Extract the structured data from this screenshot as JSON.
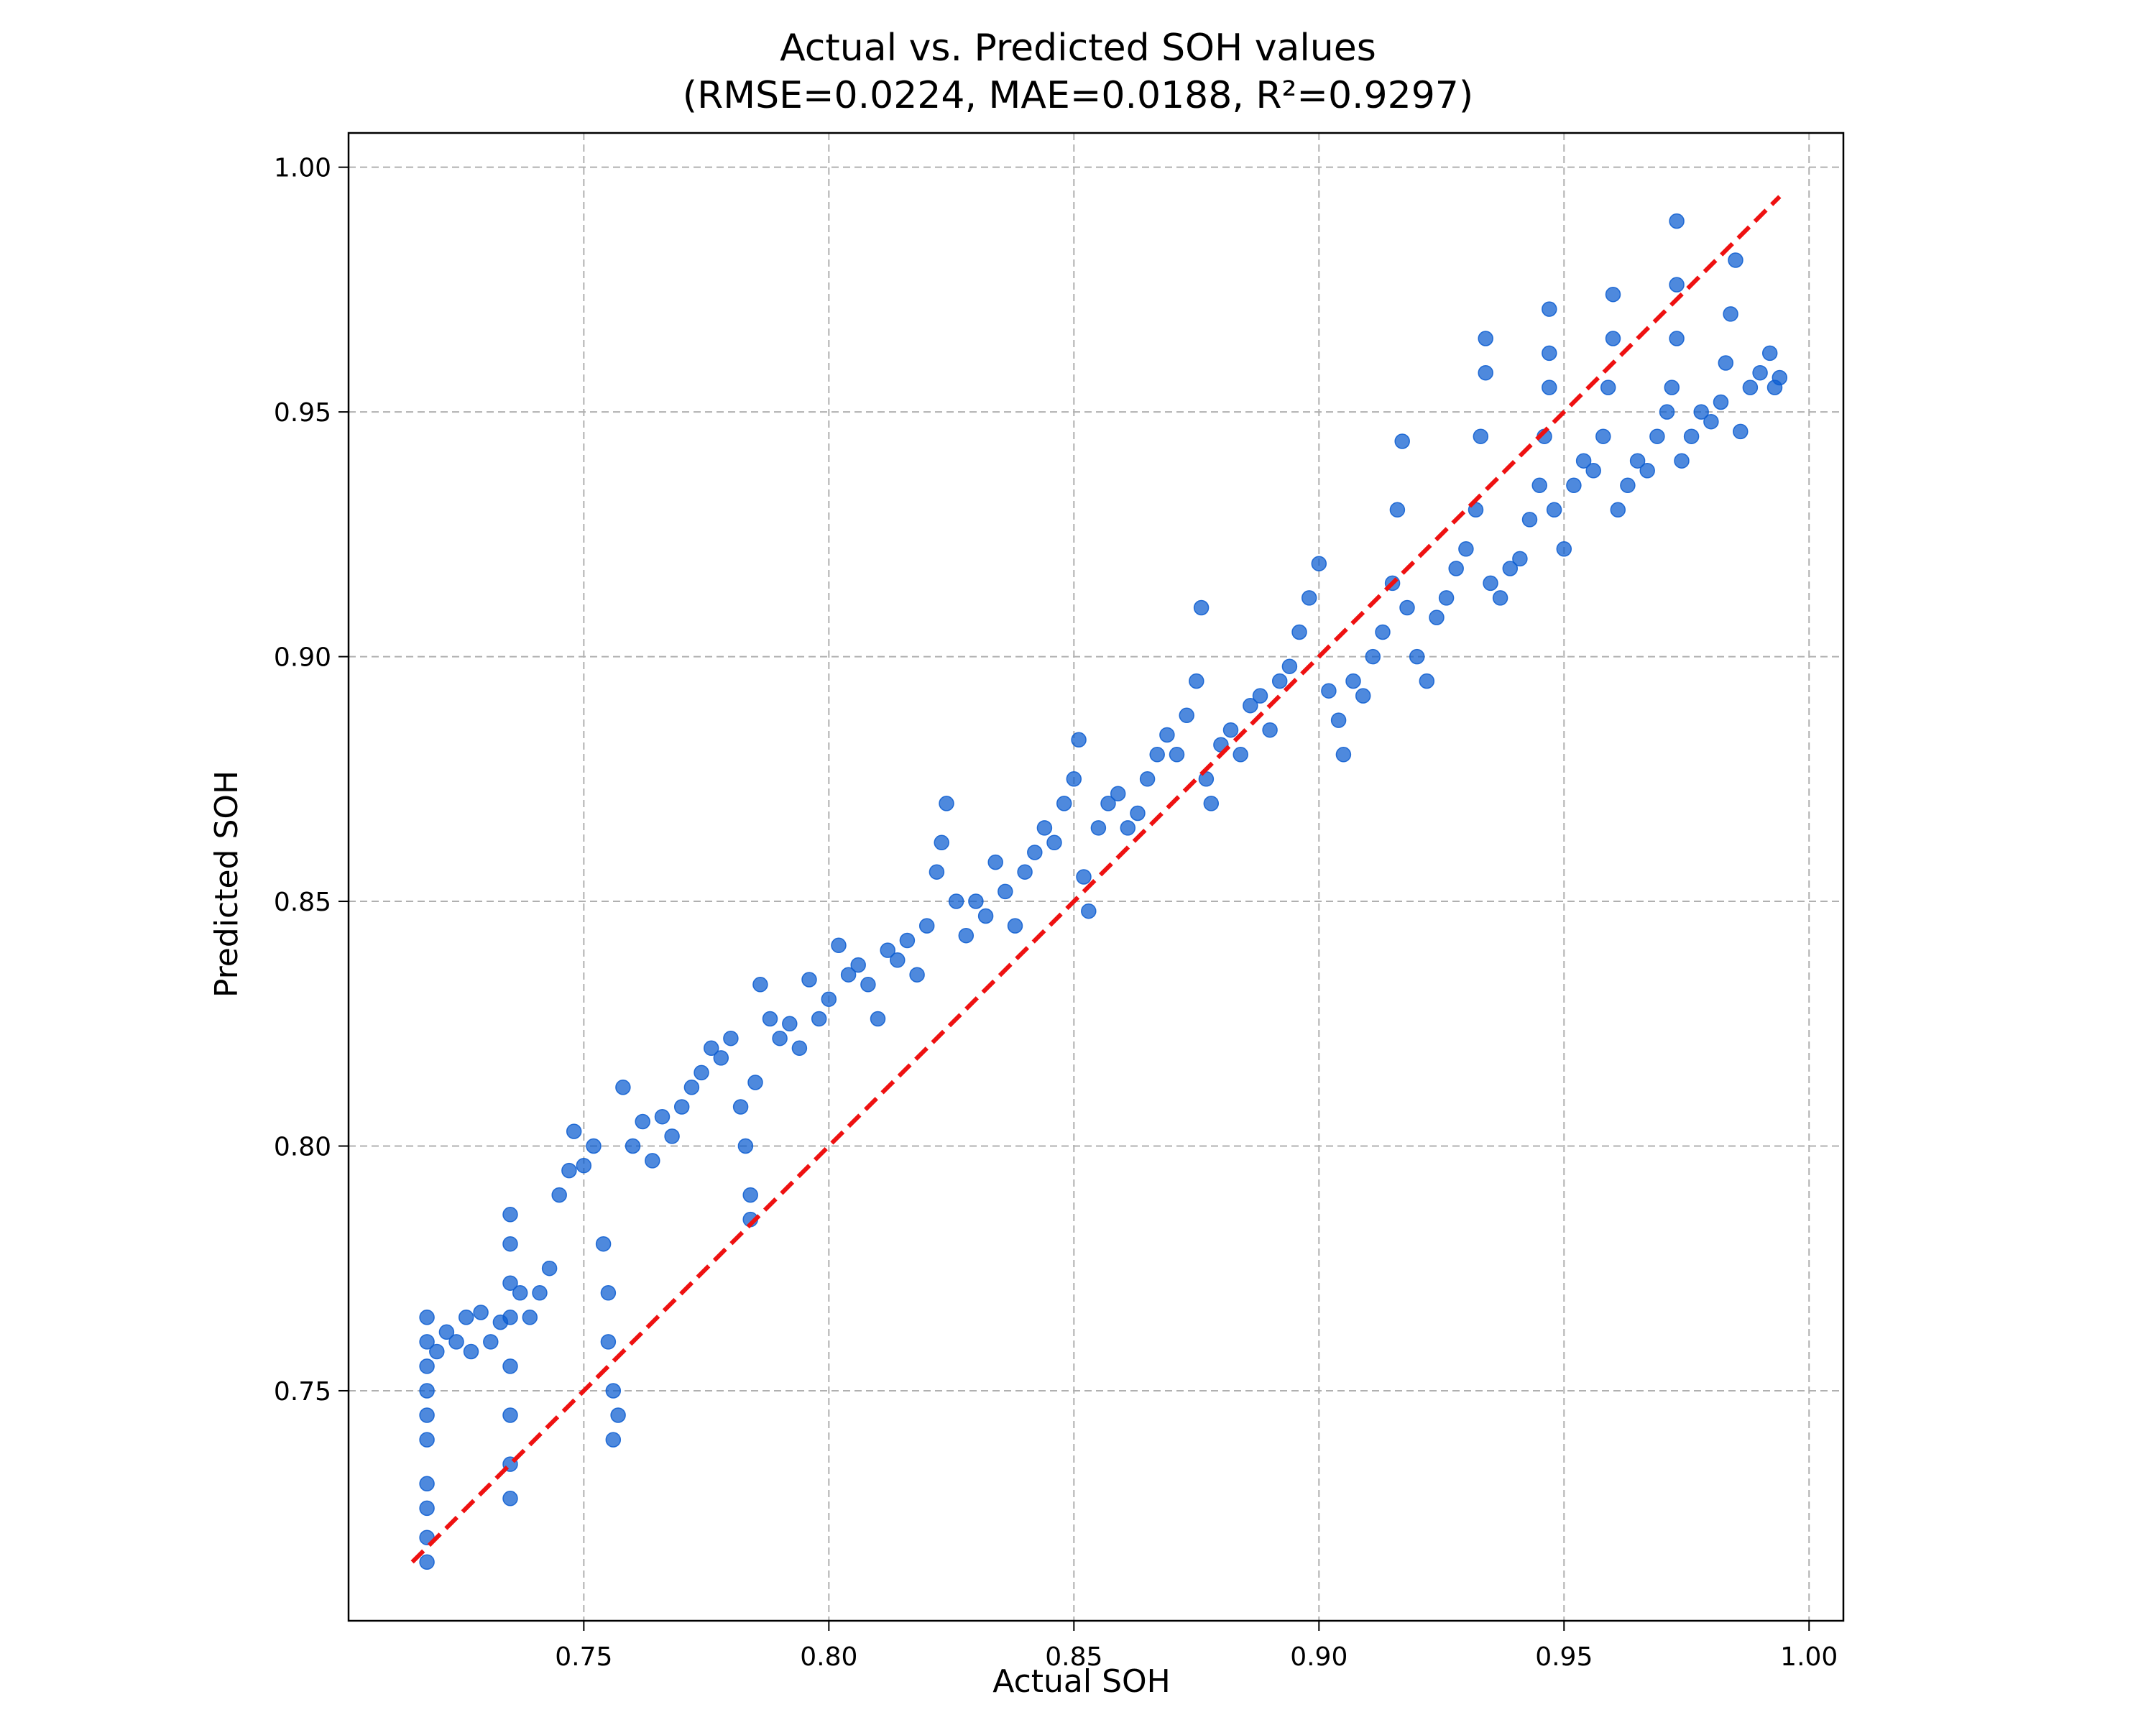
{
  "chart_data": {
    "type": "scatter",
    "title_line1": "Actual vs. Predicted SOH values",
    "title_line2": "(RMSE=0.0224, MAE=0.0188,  R²=0.9297)",
    "xlabel": "Actual SOH",
    "ylabel": "Predicted SOH",
    "xlim": [
      0.702,
      1.007
    ],
    "ylim": [
      0.703,
      1.007
    ],
    "xticks": [
      0.75,
      0.8,
      0.85,
      0.9,
      0.95,
      1.0
    ],
    "xtick_labels": [
      "0.75",
      "0.80",
      "0.85",
      "0.90",
      "0.95",
      "1.00"
    ],
    "yticks": [
      0.75,
      0.8,
      0.85,
      0.9,
      0.95,
      1.0
    ],
    "ytick_labels": [
      "0.75",
      "0.80",
      "0.85",
      "0.90",
      "0.95",
      "1.00"
    ],
    "grid": true,
    "reference_line": {
      "x": [
        0.715,
        0.994
      ],
      "y": [
        0.715,
        0.994
      ],
      "color": "#ee1111",
      "style": "dashed"
    },
    "series": [
      {
        "color": "#0a5cd0",
        "points": [
          [
            0.718,
            0.715
          ],
          [
            0.718,
            0.72
          ],
          [
            0.718,
            0.726
          ],
          [
            0.718,
            0.731
          ],
          [
            0.718,
            0.74
          ],
          [
            0.718,
            0.745
          ],
          [
            0.718,
            0.75
          ],
          [
            0.718,
            0.755
          ],
          [
            0.718,
            0.76
          ],
          [
            0.718,
            0.765
          ],
          [
            0.72,
            0.758
          ],
          [
            0.722,
            0.762
          ],
          [
            0.724,
            0.76
          ],
          [
            0.726,
            0.765
          ],
          [
            0.727,
            0.758
          ],
          [
            0.729,
            0.766
          ],
          [
            0.731,
            0.76
          ],
          [
            0.733,
            0.764
          ],
          [
            0.735,
            0.728
          ],
          [
            0.735,
            0.735
          ],
          [
            0.735,
            0.745
          ],
          [
            0.735,
            0.755
          ],
          [
            0.735,
            0.765
          ],
          [
            0.735,
            0.772
          ],
          [
            0.735,
            0.78
          ],
          [
            0.735,
            0.786
          ],
          [
            0.737,
            0.77
          ],
          [
            0.739,
            0.765
          ],
          [
            0.741,
            0.77
          ],
          [
            0.743,
            0.775
          ],
          [
            0.745,
            0.79
          ],
          [
            0.747,
            0.795
          ],
          [
            0.748,
            0.803
          ],
          [
            0.75,
            0.796
          ],
          [
            0.752,
            0.8
          ],
          [
            0.754,
            0.78
          ],
          [
            0.755,
            0.77
          ],
          [
            0.755,
            0.76
          ],
          [
            0.756,
            0.75
          ],
          [
            0.756,
            0.74
          ],
          [
            0.757,
            0.745
          ],
          [
            0.758,
            0.812
          ],
          [
            0.76,
            0.8
          ],
          [
            0.762,
            0.805
          ],
          [
            0.764,
            0.797
          ],
          [
            0.766,
            0.806
          ],
          [
            0.768,
            0.802
          ],
          [
            0.77,
            0.808
          ],
          [
            0.772,
            0.812
          ],
          [
            0.774,
            0.815
          ],
          [
            0.776,
            0.82
          ],
          [
            0.778,
            0.818
          ],
          [
            0.78,
            0.822
          ],
          [
            0.782,
            0.808
          ],
          [
            0.783,
            0.8
          ],
          [
            0.784,
            0.785
          ],
          [
            0.784,
            0.79
          ],
          [
            0.785,
            0.813
          ],
          [
            0.786,
            0.833
          ],
          [
            0.788,
            0.826
          ],
          [
            0.79,
            0.822
          ],
          [
            0.792,
            0.825
          ],
          [
            0.794,
            0.82
          ],
          [
            0.796,
            0.834
          ],
          [
            0.798,
            0.826
          ],
          [
            0.8,
            0.83
          ],
          [
            0.802,
            0.841
          ],
          [
            0.804,
            0.835
          ],
          [
            0.806,
            0.837
          ],
          [
            0.808,
            0.833
          ],
          [
            0.81,
            0.826
          ],
          [
            0.812,
            0.84
          ],
          [
            0.814,
            0.838
          ],
          [
            0.816,
            0.842
          ],
          [
            0.818,
            0.835
          ],
          [
            0.82,
            0.845
          ],
          [
            0.822,
            0.856
          ],
          [
            0.823,
            0.862
          ],
          [
            0.824,
            0.87
          ],
          [
            0.826,
            0.85
          ],
          [
            0.828,
            0.843
          ],
          [
            0.83,
            0.85
          ],
          [
            0.832,
            0.847
          ],
          [
            0.834,
            0.858
          ],
          [
            0.836,
            0.852
          ],
          [
            0.838,
            0.845
          ],
          [
            0.84,
            0.856
          ],
          [
            0.842,
            0.86
          ],
          [
            0.844,
            0.865
          ],
          [
            0.846,
            0.862
          ],
          [
            0.848,
            0.87
          ],
          [
            0.85,
            0.875
          ],
          [
            0.851,
            0.883
          ],
          [
            0.852,
            0.855
          ],
          [
            0.853,
            0.848
          ],
          [
            0.855,
            0.865
          ],
          [
            0.857,
            0.87
          ],
          [
            0.859,
            0.872
          ],
          [
            0.861,
            0.865
          ],
          [
            0.863,
            0.868
          ],
          [
            0.865,
            0.875
          ],
          [
            0.867,
            0.88
          ],
          [
            0.869,
            0.884
          ],
          [
            0.871,
            0.88
          ],
          [
            0.873,
            0.888
          ],
          [
            0.875,
            0.895
          ],
          [
            0.876,
            0.91
          ],
          [
            0.877,
            0.875
          ],
          [
            0.878,
            0.87
          ],
          [
            0.88,
            0.882
          ],
          [
            0.882,
            0.885
          ],
          [
            0.884,
            0.88
          ],
          [
            0.886,
            0.89
          ],
          [
            0.888,
            0.892
          ],
          [
            0.89,
            0.885
          ],
          [
            0.892,
            0.895
          ],
          [
            0.894,
            0.898
          ],
          [
            0.896,
            0.905
          ],
          [
            0.898,
            0.912
          ],
          [
            0.9,
            0.919
          ],
          [
            0.902,
            0.893
          ],
          [
            0.904,
            0.887
          ],
          [
            0.905,
            0.88
          ],
          [
            0.907,
            0.895
          ],
          [
            0.909,
            0.892
          ],
          [
            0.911,
            0.9
          ],
          [
            0.913,
            0.905
          ],
          [
            0.915,
            0.915
          ],
          [
            0.916,
            0.93
          ],
          [
            0.917,
            0.944
          ],
          [
            0.918,
            0.91
          ],
          [
            0.92,
            0.9
          ],
          [
            0.922,
            0.895
          ],
          [
            0.924,
            0.908
          ],
          [
            0.926,
            0.912
          ],
          [
            0.928,
            0.918
          ],
          [
            0.93,
            0.922
          ],
          [
            0.932,
            0.93
          ],
          [
            0.933,
            0.945
          ],
          [
            0.934,
            0.958
          ],
          [
            0.934,
            0.965
          ],
          [
            0.935,
            0.915
          ],
          [
            0.937,
            0.912
          ],
          [
            0.939,
            0.918
          ],
          [
            0.941,
            0.92
          ],
          [
            0.943,
            0.928
          ],
          [
            0.945,
            0.935
          ],
          [
            0.946,
            0.945
          ],
          [
            0.947,
            0.955
          ],
          [
            0.947,
            0.962
          ],
          [
            0.947,
            0.971
          ],
          [
            0.948,
            0.93
          ],
          [
            0.95,
            0.922
          ],
          [
            0.952,
            0.935
          ],
          [
            0.954,
            0.94
          ],
          [
            0.956,
            0.938
          ],
          [
            0.958,
            0.945
          ],
          [
            0.959,
            0.955
          ],
          [
            0.96,
            0.965
          ],
          [
            0.96,
            0.974
          ],
          [
            0.961,
            0.93
          ],
          [
            0.963,
            0.935
          ],
          [
            0.965,
            0.94
          ],
          [
            0.967,
            0.938
          ],
          [
            0.969,
            0.945
          ],
          [
            0.971,
            0.95
          ],
          [
            0.972,
            0.955
          ],
          [
            0.973,
            0.965
          ],
          [
            0.973,
            0.976
          ],
          [
            0.973,
            0.989
          ],
          [
            0.974,
            0.94
          ],
          [
            0.976,
            0.945
          ],
          [
            0.978,
            0.95
          ],
          [
            0.98,
            0.948
          ],
          [
            0.982,
            0.952
          ],
          [
            0.983,
            0.96
          ],
          [
            0.984,
            0.97
          ],
          [
            0.985,
            0.981
          ],
          [
            0.986,
            0.946
          ],
          [
            0.988,
            0.955
          ],
          [
            0.99,
            0.958
          ],
          [
            0.992,
            0.962
          ],
          [
            0.993,
            0.955
          ],
          [
            0.994,
            0.957
          ]
        ]
      }
    ]
  }
}
